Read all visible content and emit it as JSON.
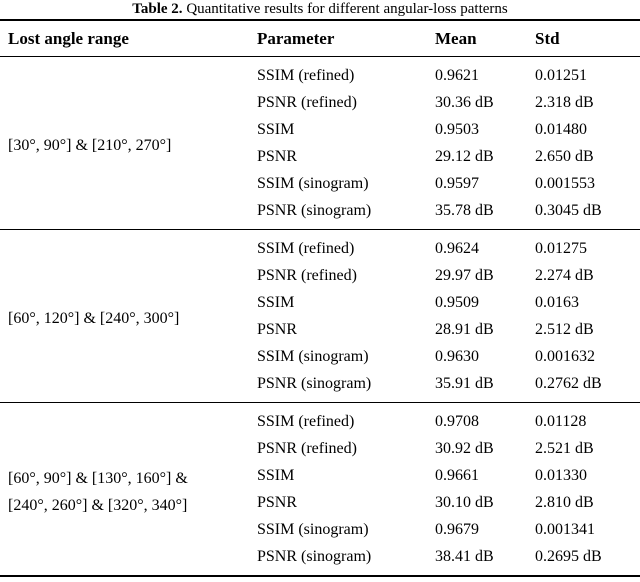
{
  "caption": {
    "label": "Table 2.",
    "text": "Quantitative results for different angular-loss patterns"
  },
  "columns": [
    "Lost angle range",
    "Parameter",
    "Mean",
    "Std"
  ],
  "chart_data": {
    "type": "table",
    "title": "Table 2. Quantitative results for different angular-loss patterns",
    "column_headers": [
      "Lost angle range",
      "Parameter",
      "Mean",
      "Std"
    ],
    "groups": [
      {
        "lost_angle_range": "[30°, 90°] & [210°, 270°]",
        "rows": [
          {
            "parameter": "SSIM (refined)",
            "mean": "0.9621",
            "std": "0.01251"
          },
          {
            "parameter": "PSNR (refined)",
            "mean": "30.36 dB",
            "std": "2.318 dB"
          },
          {
            "parameter": "SSIM",
            "mean": "0.9503",
            "std": "0.01480"
          },
          {
            "parameter": "PSNR",
            "mean": "29.12 dB",
            "std": "2.650 dB"
          },
          {
            "parameter": "SSIM (sinogram)",
            "mean": "0.9597",
            "std": "0.001553"
          },
          {
            "parameter": "PSNR (sinogram)",
            "mean": "35.78 dB",
            "std": "0.3045 dB"
          }
        ]
      },
      {
        "lost_angle_range": "[60°, 120°] & [240°, 300°]",
        "rows": [
          {
            "parameter": "SSIM (refined)",
            "mean": "0.9624",
            "std": "0.01275"
          },
          {
            "parameter": "PSNR (refined)",
            "mean": "29.97 dB",
            "std": "2.274 dB"
          },
          {
            "parameter": "SSIM",
            "mean": "0.9509",
            "std": "0.0163"
          },
          {
            "parameter": "PSNR",
            "mean": "28.91 dB",
            "std": "2.512 dB"
          },
          {
            "parameter": "SSIM (sinogram)",
            "mean": "0.9630",
            "std": "0.001632"
          },
          {
            "parameter": "PSNR (sinogram)",
            "mean": "35.91 dB",
            "std": "0.2762 dB"
          }
        ]
      },
      {
        "lost_angle_range": "[60°, 90°] & [130°, 160°] & [240°, 260°] & [320°, 340°]",
        "rows": [
          {
            "parameter": "SSIM (refined)",
            "mean": "0.9708",
            "std": "0.01128"
          },
          {
            "parameter": "PSNR (refined)",
            "mean": "30.92 dB",
            "std": "2.521 dB"
          },
          {
            "parameter": "SSIM",
            "mean": "0.9661",
            "std": "0.01330"
          },
          {
            "parameter": "PSNR",
            "mean": "30.10 dB",
            "std": "2.810 dB"
          },
          {
            "parameter": "SSIM (sinogram)",
            "mean": "0.9679",
            "std": "0.001341"
          },
          {
            "parameter": "PSNR (sinogram)",
            "mean": "38.41 dB",
            "std": "0.2695 dB"
          }
        ]
      }
    ]
  },
  "groups": [
    {
      "range_lines": [
        "[30°, 90°] & [210°, 270°]"
      ],
      "rows": [
        {
          "param": "SSIM (refined)",
          "mean": "0.9621",
          "std": "0.01251"
        },
        {
          "param": "PSNR (refined)",
          "mean": "30.36 dB",
          "std": "2.318 dB"
        },
        {
          "param": "SSIM",
          "mean": "0.9503",
          "std": "0.01480"
        },
        {
          "param": "PSNR",
          "mean": "29.12 dB",
          "std": "2.650 dB"
        },
        {
          "param": "SSIM (sinogram)",
          "mean": "0.9597",
          "std": "0.001553"
        },
        {
          "param": "PSNR (sinogram)",
          "mean": "35.78 dB",
          "std": "0.3045 dB"
        }
      ]
    },
    {
      "range_lines": [
        "[60°, 120°] & [240°, 300°]"
      ],
      "rows": [
        {
          "param": "SSIM (refined)",
          "mean": "0.9624",
          "std": "0.01275"
        },
        {
          "param": "PSNR (refined)",
          "mean": "29.97 dB",
          "std": "2.274 dB"
        },
        {
          "param": "SSIM",
          "mean": "0.9509",
          "std": "0.0163"
        },
        {
          "param": "PSNR",
          "mean": "28.91 dB",
          "std": "2.512 dB"
        },
        {
          "param": "SSIM (sinogram)",
          "mean": "0.9630",
          "std": "0.001632"
        },
        {
          "param": "PSNR (sinogram)",
          "mean": "35.91 dB",
          "std": "0.2762 dB"
        }
      ]
    },
    {
      "range_lines": [
        "[60°, 90°] & [130°, 160°] &",
        "[240°, 260°] & [320°, 340°]"
      ],
      "rows": [
        {
          "param": "SSIM (refined)",
          "mean": "0.9708",
          "std": "0.01128"
        },
        {
          "param": "PSNR (refined)",
          "mean": "30.92 dB",
          "std": "2.521 dB"
        },
        {
          "param": "SSIM",
          "mean": "0.9661",
          "std": "0.01330"
        },
        {
          "param": "PSNR",
          "mean": "30.10 dB",
          "std": "2.810 dB"
        },
        {
          "param": "SSIM (sinogram)",
          "mean": "0.9679",
          "std": "0.001341"
        },
        {
          "param": "PSNR (sinogram)",
          "mean": "38.41 dB",
          "std": "0.2695 dB"
        }
      ]
    }
  ]
}
